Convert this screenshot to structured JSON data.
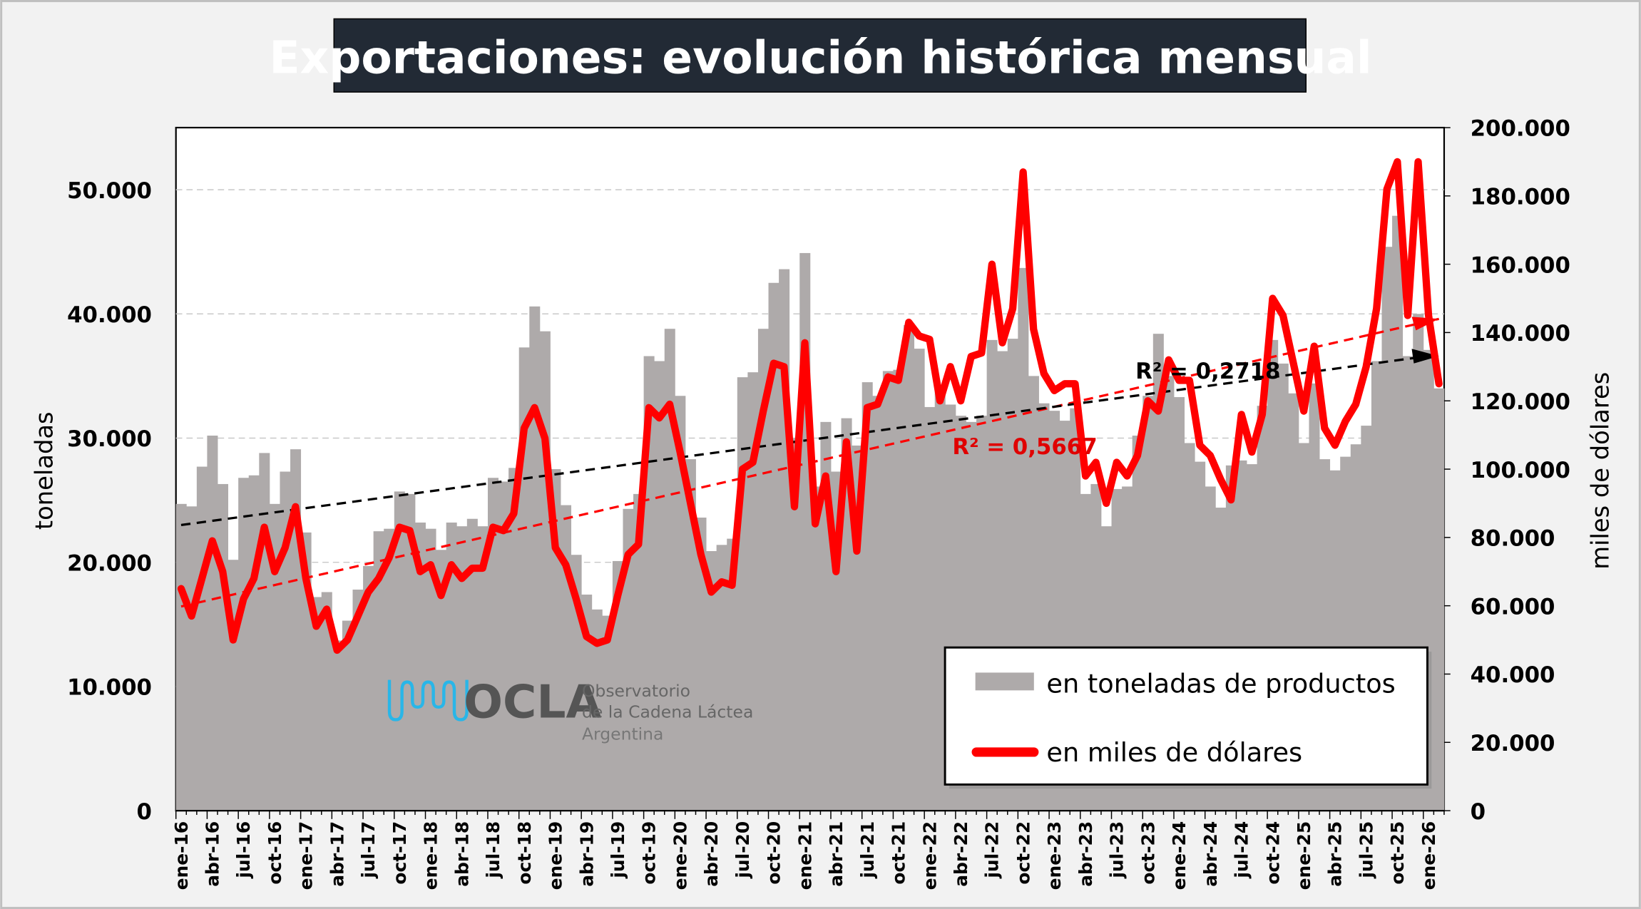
{
  "chart_data": {
    "type": "bar+line",
    "title": "Exportaciones: evolución histórica mensual",
    "ylabel_left": "toneladas",
    "ylabel_right": "miles de dólares",
    "ylim_left": [
      0,
      55000
    ],
    "ylim_right": [
      0,
      200000
    ],
    "yticks_left": [
      "0",
      "10.000",
      "20.000",
      "30.000",
      "40.000",
      "50.000"
    ],
    "yticks_left_values": [
      0,
      10000,
      20000,
      30000,
      40000,
      50000
    ],
    "yticks_right": [
      "0",
      "20.000",
      "40.000",
      "60.000",
      "80.000",
      "100.000",
      "120.000",
      "140.000",
      "160.000",
      "180.000",
      "200.000"
    ],
    "yticks_right_values": [
      0,
      20000,
      40000,
      60000,
      80000,
      100000,
      120000,
      140000,
      160000,
      180000,
      200000
    ],
    "start_month": "ene-16",
    "xtick_labels": [
      "ene-16",
      "abr-16",
      "jul-16",
      "oct-16",
      "ene-17",
      "abr-17",
      "jul-17",
      "oct-17",
      "ene-18",
      "abr-18",
      "jul-18",
      "oct-18",
      "ene-19",
      "abr-19",
      "jul-19",
      "oct-19",
      "ene-20",
      "abr-20",
      "jul-20",
      "oct-20",
      "ene-21",
      "abr-21",
      "jul-21",
      "oct-21",
      "ene-22",
      "abr-22",
      "jul-22",
      "oct-22",
      "ene-23",
      "abr-23",
      "jul-23",
      "oct-23",
      "ene-24",
      "abr-24",
      "jul-24",
      "oct-24",
      "ene-25",
      "abr-25",
      "jul-25",
      "oct-25",
      "ene-26"
    ],
    "grid": "horizontal dashed",
    "legend_placement": "bottom-right",
    "series": [
      {
        "name": "en toneladas de productos",
        "axis": "left",
        "kind": "bar",
        "color": "#aeaaaa",
        "values": [
          24700,
          24500,
          27700,
          30200,
          26300,
          20200,
          26800,
          27000,
          28800,
          24700,
          27300,
          29100,
          22400,
          17200,
          17600,
          13700,
          15300,
          17800,
          19700,
          22500,
          22700,
          25700,
          25500,
          23200,
          22700,
          21000,
          23200,
          22900,
          23500,
          22900,
          26800,
          26500,
          27600,
          37300,
          40600,
          38600,
          27500,
          24600,
          20600,
          17400,
          16200,
          15700,
          20100,
          24300,
          25500,
          36600,
          36200,
          38800,
          33400,
          28300,
          23600,
          20900,
          21400,
          21900,
          34900,
          35300,
          38800,
          42500,
          43600,
          30000,
          44900,
          26100,
          31300,
          27300,
          31600,
          29400,
          34500,
          33400,
          35400,
          35500,
          39100,
          37200,
          32500,
          33800,
          32700,
          31800,
          31300,
          31800,
          37900,
          37000,
          38000,
          43700,
          35000,
          32800,
          32200,
          31400,
          32400,
          25500,
          26300,
          22900,
          25900,
          26100,
          30200,
          33400,
          38400,
          35000,
          33300,
          29600,
          28100,
          26100,
          24400,
          27800,
          28200,
          27900,
          32600,
          37900,
          36000,
          33600,
          29600,
          34400,
          28300,
          27400,
          28500,
          29500,
          31000,
          36200,
          45400,
          47900,
          36600,
          40000,
          37100,
          34000
        ]
      },
      {
        "name": "en miles de dólares",
        "axis": "right",
        "kind": "line",
        "color": "#ff0000",
        "values": [
          65000,
          57000,
          68000,
          79000,
          70000,
          50000,
          62000,
          68000,
          83000,
          70000,
          77000,
          89000,
          68000,
          54000,
          59000,
          47000,
          50000,
          57000,
          64000,
          68000,
          74000,
          83000,
          82000,
          70000,
          72000,
          63000,
          72000,
          68000,
          71000,
          71000,
          83000,
          82000,
          87000,
          112000,
          118000,
          109000,
          77000,
          72000,
          62000,
          51000,
          49000,
          50000,
          63000,
          75000,
          78000,
          118000,
          115000,
          119000,
          105000,
          90000,
          75000,
          64000,
          67000,
          66000,
          100000,
          102000,
          117000,
          131000,
          130000,
          89000,
          137000,
          84000,
          98000,
          70000,
          108000,
          76000,
          118000,
          119000,
          127000,
          126000,
          143000,
          139000,
          138000,
          120000,
          130000,
          120000,
          133000,
          134000,
          160000,
          137000,
          147000,
          187000,
          141000,
          128000,
          123000,
          125000,
          125000,
          98000,
          102000,
          90000,
          102000,
          98000,
          104000,
          120000,
          117000,
          132000,
          126000,
          126000,
          107000,
          104000,
          97000,
          91000,
          116000,
          105000,
          116000,
          150000,
          145000,
          131000,
          117000,
          136000,
          112000,
          107000,
          114000,
          119000,
          130000,
          147000,
          182000,
          190000,
          145000,
          190000,
          145000,
          125000
        ]
      }
    ],
    "trendlines": [
      {
        "series": "en toneladas de productos",
        "axis": "left",
        "color": "#000000",
        "start": 23000,
        "end": 36600,
        "r2_label": "R² = 0,2718"
      },
      {
        "series": "en miles de dólares",
        "axis": "right",
        "color": "#ff0000",
        "start": 59800,
        "end": 144000,
        "r2_label": "R² = 0,5667"
      }
    ]
  },
  "logo": {
    "name": "OCLA",
    "line1": "Observatorio",
    "line2": "de la Cadena Láctea",
    "line3": "Argentina"
  }
}
